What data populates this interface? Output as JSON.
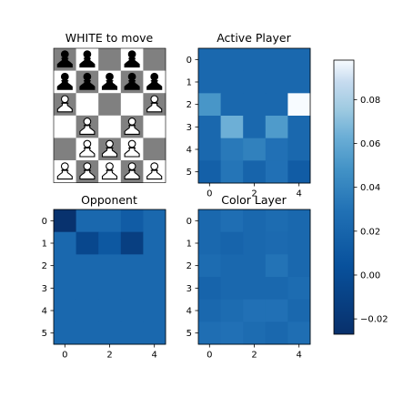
{
  "colors": {
    "light_square": "#ffffff",
    "dark_square": "#808080",
    "black_piece": "#000000",
    "white_piece": "#ffffff"
  },
  "board": {
    "title": "WHITE to move",
    "pieces": [
      [
        "bp",
        "bp",
        "",
        "bp",
        ""
      ],
      [
        "bp",
        "bp",
        "bp",
        "bp",
        "bp"
      ],
      [
        "wp",
        "",
        "",
        "",
        "wp"
      ],
      [
        "",
        "wp",
        "",
        "wp",
        ""
      ],
      [
        "",
        "wp",
        "wp",
        "wp",
        ""
      ],
      [
        "wp",
        "wp",
        "wp",
        "wp",
        "wp"
      ]
    ]
  },
  "chart_data": [
    {
      "type": "heatmap",
      "title": "Active Player",
      "x_ticks": [
        "0",
        "2",
        "4"
      ],
      "y_ticks": [
        "0",
        "1",
        "2",
        "3",
        "4",
        "5"
      ],
      "colormap": "Blues_r",
      "values": [
        [
          0.0,
          0.0,
          0.0,
          0.0,
          0.0
        ],
        [
          0.0,
          0.0,
          0.0,
          0.0,
          0.0
        ],
        [
          0.022,
          0.0,
          0.0,
          0.0,
          0.098
        ],
        [
          0.0,
          0.036,
          0.0,
          0.025,
          0.0
        ],
        [
          0.0,
          0.008,
          0.012,
          0.004,
          0.0
        ],
        [
          -0.004,
          0.006,
          -0.002,
          0.004,
          -0.006
        ]
      ]
    },
    {
      "type": "heatmap",
      "title": "Opponent",
      "x_ticks": [
        "0",
        "2",
        "4"
      ],
      "y_ticks": [
        "0",
        "1",
        "2",
        "3",
        "4",
        "5"
      ],
      "colormap": "Blues_r",
      "values": [
        [
          -0.026,
          0.0,
          0.0,
          -0.006,
          0.0
        ],
        [
          0.0,
          -0.016,
          -0.008,
          -0.02,
          0.0
        ],
        [
          0.0,
          0.0,
          0.0,
          0.0,
          0.0
        ],
        [
          0.0,
          0.0,
          0.0,
          0.0,
          0.0
        ],
        [
          0.0,
          0.0,
          0.0,
          0.0,
          0.0
        ],
        [
          0.0,
          0.0,
          0.0,
          0.0,
          0.0
        ]
      ]
    },
    {
      "type": "heatmap",
      "title": "Color Layer",
      "x_ticks": [
        "0",
        "2",
        "4"
      ],
      "y_ticks": [
        "0",
        "1",
        "2",
        "3",
        "4",
        "5"
      ],
      "colormap": "Blues_r",
      "values": [
        [
          0.0,
          0.003,
          0.0,
          0.002,
          0.0
        ],
        [
          0.0,
          -0.002,
          0.0,
          0.001,
          0.0
        ],
        [
          0.002,
          0.0,
          0.0,
          0.005,
          0.0
        ],
        [
          -0.002,
          0.0,
          0.0,
          0.0,
          0.002
        ],
        [
          0.0,
          0.002,
          0.004,
          0.004,
          0.0
        ],
        [
          0.003,
          0.004,
          0.002,
          0.0,
          0.003
        ]
      ]
    }
  ],
  "colorbar": {
    "ticks": [
      {
        "value": 0.08,
        "label": "0.08"
      },
      {
        "value": 0.06,
        "label": "0.06"
      },
      {
        "value": 0.04,
        "label": "0.04"
      },
      {
        "value": 0.02,
        "label": "0.02"
      },
      {
        "value": 0.0,
        "label": "0.00"
      },
      {
        "value": -0.02,
        "label": "−0.02"
      }
    ],
    "vmin": -0.027,
    "vmax": 0.098
  }
}
